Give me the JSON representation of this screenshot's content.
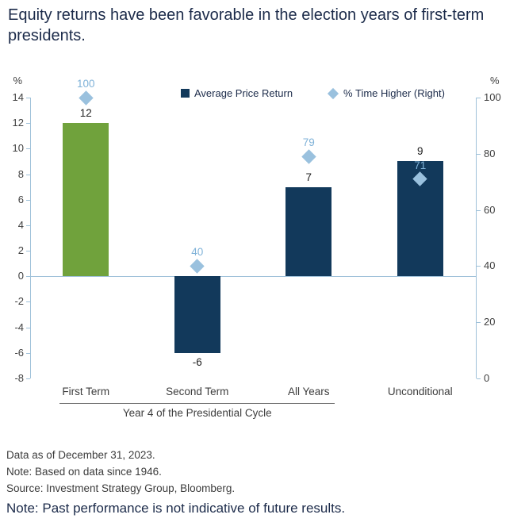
{
  "title": "Equity returns have been favorable in the election years of first-term presidents.",
  "chart_data": {
    "type": "bar",
    "categories": [
      "First Term",
      "Second Term",
      "All Years",
      "Unconditional"
    ],
    "series": [
      {
        "name": "Average Price Return",
        "type": "bar",
        "axis": "left",
        "values": [
          12,
          -6,
          7,
          9
        ],
        "labels": [
          "12",
          "-6",
          "7",
          "9"
        ],
        "color": "#12395B",
        "colors": [
          "#70A23C",
          "#12395B",
          "#12395B",
          "#12395B"
        ]
      },
      {
        "name": "% Time Higher (Right)",
        "type": "scatter",
        "marker": "diamond",
        "axis": "right",
        "values": [
          100,
          40,
          79,
          71
        ],
        "labels": [
          "100",
          "40",
          "79",
          "71"
        ],
        "color": "#9AC1DE"
      }
    ],
    "left_axis": {
      "label": "%",
      "min": -8,
      "max": 14,
      "ticks": [
        14,
        12,
        10,
        8,
        6,
        4,
        2,
        0,
        -2,
        -4,
        -6,
        -8
      ]
    },
    "right_axis": {
      "label": "%",
      "min": 0,
      "max": 100,
      "ticks": [
        100,
        80,
        60,
        40,
        20,
        0
      ]
    },
    "x_group": {
      "label": "Year 4 of the Presidential Cycle",
      "span_categories": [
        0,
        2
      ]
    },
    "legend_position": "top-inside",
    "grid": false
  },
  "footer": {
    "line1": "Data as of December 31, 2023.",
    "line2": "Note: Based on data since 1946.",
    "line3": "Source: Investment Strategy Group, Bloomberg.",
    "note": "Note: Past performance is not indicative of future results."
  },
  "colors": {
    "green_bar": "#70A23C",
    "navy_bar": "#12395B",
    "diamond_fill": "#9AC1DE",
    "diamond_label_text": "#7FB2D8",
    "axis_line": "#9FC1D9",
    "title_text": "#1C2B4A",
    "tick_text": "#404040",
    "bar_label_text": "#222222",
    "group_line": "#6B6B6B"
  }
}
